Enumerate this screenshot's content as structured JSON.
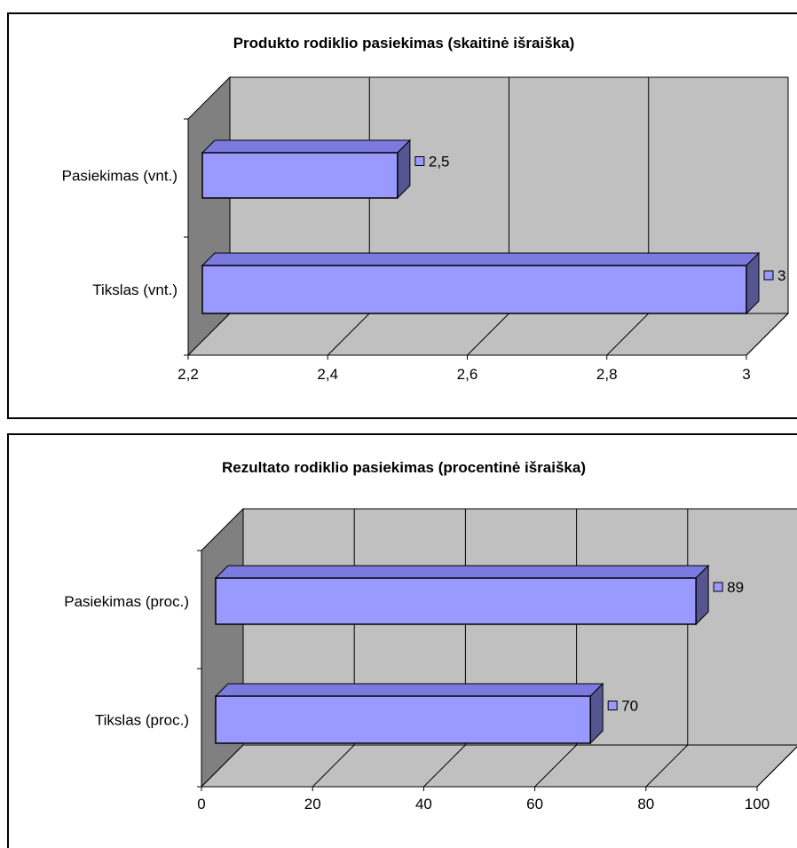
{
  "chart_data": [
    {
      "type": "bar",
      "orientation": "horizontal",
      "three_d": true,
      "title": "Produkto rodiklio pasiekimas (skaitinė išraiška)",
      "categories": [
        "Pasiekimas (vnt.)",
        "Tikslas (vnt.)"
      ],
      "values": [
        2.5,
        3
      ],
      "data_labels": [
        "2,5",
        "3"
      ],
      "xlim": [
        2.2,
        3.0
      ],
      "ticks": [
        2.2,
        2.4,
        2.6,
        2.8,
        3.0
      ],
      "tick_labels": [
        "2,2",
        "2,4",
        "2,6",
        "2,8",
        "3"
      ],
      "grid": true,
      "legend": "none",
      "colors": {
        "bar": "#9999ff",
        "bar_top": "#7b7bdf",
        "bar_side": "#555591",
        "wall": "#c0c0c0",
        "side_wall": "#808080"
      }
    },
    {
      "type": "bar",
      "orientation": "horizontal",
      "three_d": true,
      "title": "Rezultato rodiklio pasiekimas (procentinė išraiška)",
      "categories": [
        "Pasiekimas (proc.)",
        "Tikslas (proc.)"
      ],
      "values": [
        89,
        70
      ],
      "data_labels": [
        "89",
        "70"
      ],
      "xlim": [
        0,
        100
      ],
      "ticks": [
        0,
        20,
        40,
        60,
        80,
        100
      ],
      "tick_labels": [
        "0",
        "20",
        "40",
        "60",
        "80",
        "100"
      ],
      "grid": true,
      "legend": "none",
      "colors": {
        "bar": "#9999ff",
        "bar_top": "#7b7bdf",
        "bar_side": "#555591",
        "wall": "#c0c0c0",
        "side_wall": "#808080"
      }
    }
  ]
}
